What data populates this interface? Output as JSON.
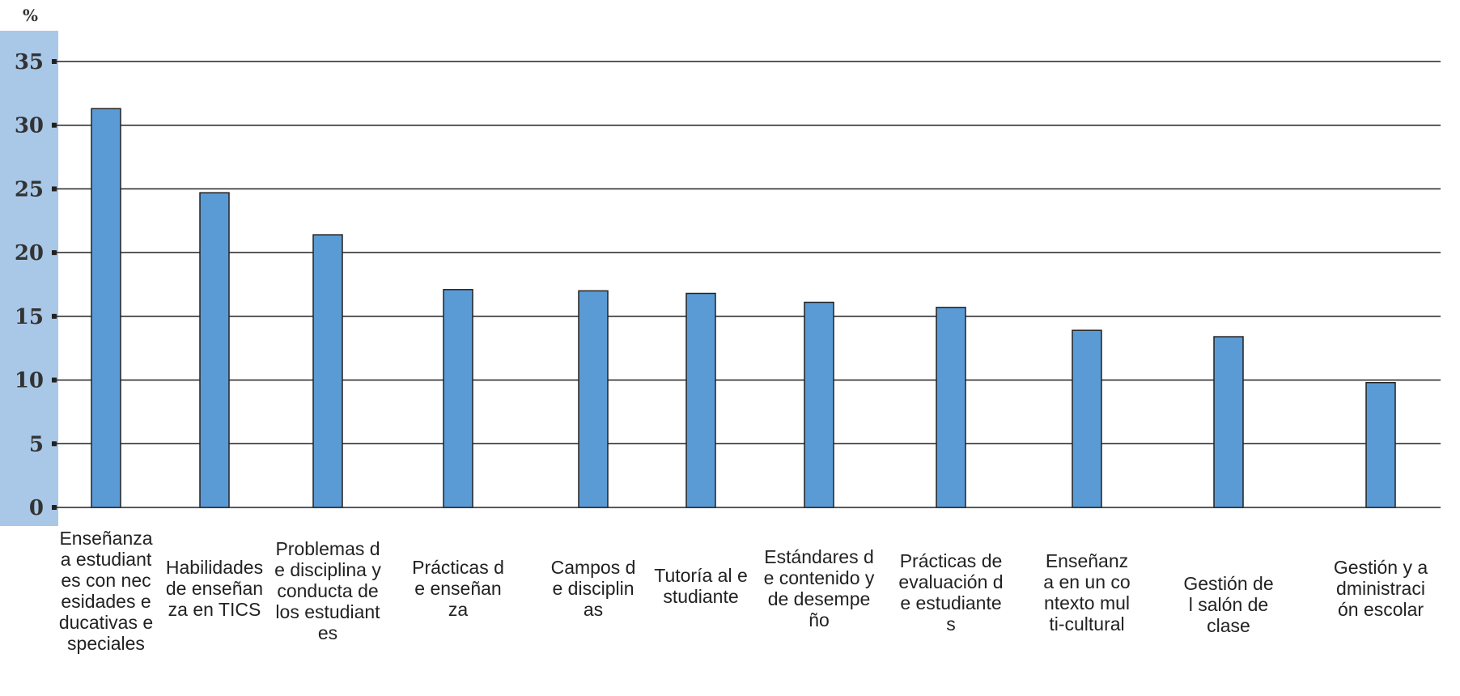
{
  "colors": {
    "bar": "#5b9bd5",
    "bar_stroke": "#222222",
    "axis_band": "#a9c8e8",
    "grid": "#222222"
  },
  "chart_data": {
    "type": "bar",
    "y_unit": "%",
    "ylim": [
      0,
      35
    ],
    "yticks": [
      0,
      5,
      10,
      15,
      20,
      25,
      30,
      35
    ],
    "grid": true,
    "categories": [
      "Enseñanza a estudiantes con necesidades educativas especiales",
      "Habilidades de enseñanza en TICS",
      "Problemas de disciplina y conducta de los estudiantes",
      "Prácticas de enseñanza",
      "Campos de disciplinas",
      "Tutoría al estudiante",
      "Estándares de contenido y de desempeño",
      "Prácticas de evaluación de estudiantes",
      "Enseñanza en un contexto multi-cultural",
      "Gestión del salón de clase",
      "Gestión y administración escolar"
    ],
    "values": [
      31.3,
      24.7,
      21.4,
      17.1,
      17.0,
      16.8,
      16.1,
      15.7,
      13.9,
      13.4,
      9.8
    ]
  }
}
